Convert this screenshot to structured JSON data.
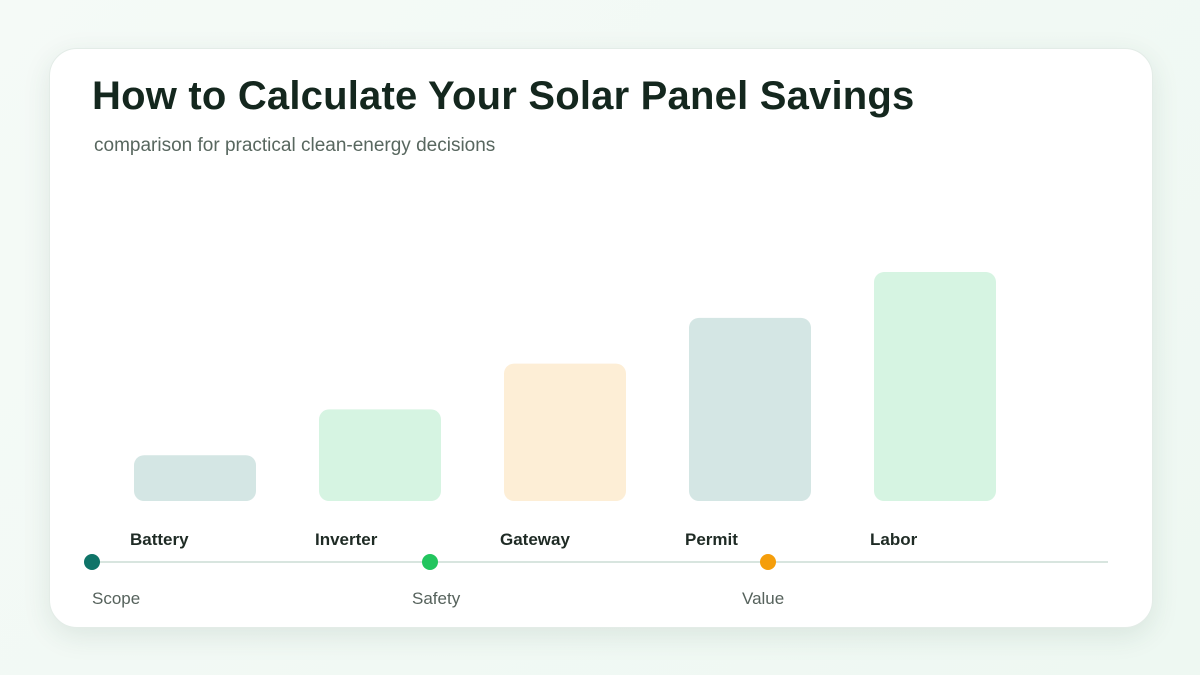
{
  "header": {
    "title": "How to Calculate Your Solar Panel Savings",
    "subtitle": "comparison for practical clean-energy decisions"
  },
  "chart_data": {
    "type": "bar",
    "title": "How to Calculate Your Solar Panel Savings",
    "subtitle": "comparison for practical clean-energy decisions",
    "categories": [
      "Battery",
      "Inverter",
      "Gateway",
      "Permit",
      "Labor"
    ],
    "values": [
      1,
      2,
      3,
      4,
      5
    ],
    "ylim": [
      0,
      5.7
    ],
    "bar_colors": [
      "#d4e6e4",
      "#d6f4e2",
      "#fdeed6",
      "#d4e6e4",
      "#d6f4e2"
    ],
    "xlabel": "",
    "ylabel": "",
    "grid": false,
    "legend": "none"
  },
  "timeline": {
    "line_color": "#d8e5df",
    "stages": [
      {
        "label": "Scope",
        "color": "#0f7468"
      },
      {
        "label": "Safety",
        "color": "#22c55e"
      },
      {
        "label": "Value",
        "color": "#f59e0b"
      }
    ]
  }
}
